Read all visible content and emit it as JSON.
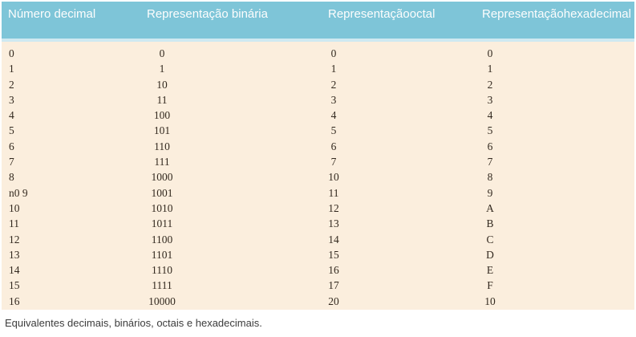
{
  "table": {
    "headers": [
      "Número decimal",
      "Representação binária",
      "Representaçãooctal",
      "Representaçãohexadecimal"
    ],
    "rows": [
      {
        "decimal": "0",
        "binary": "0",
        "octal": "0",
        "hexadecimal": "0"
      },
      {
        "decimal": "1",
        "binary": "1",
        "octal": "1",
        "hexadecimal": "1"
      },
      {
        "decimal": "2",
        "binary": "10",
        "octal": "2",
        "hexadecimal": "2"
      },
      {
        "decimal": "3",
        "binary": "11",
        "octal": "3",
        "hexadecimal": "3"
      },
      {
        "decimal": "4",
        "binary": "100",
        "octal": "4",
        "hexadecimal": "4"
      },
      {
        "decimal": "5",
        "binary": "101",
        "octal": "5",
        "hexadecimal": "5"
      },
      {
        "decimal": "6",
        "binary": "110",
        "octal": "6",
        "hexadecimal": "6"
      },
      {
        "decimal": "7",
        "binary": "111",
        "octal": "7",
        "hexadecimal": "7"
      },
      {
        "decimal": "8",
        "binary": "1000",
        "octal": "10",
        "hexadecimal": "8"
      },
      {
        "decimal": "n0 9",
        "binary": "1001",
        "octal": "11",
        "hexadecimal": "9"
      },
      {
        "decimal": "10",
        "binary": "1010",
        "octal": "12",
        "hexadecimal": "A"
      },
      {
        "decimal": "11",
        "binary": "1011",
        "octal": "13",
        "hexadecimal": "B"
      },
      {
        "decimal": "12",
        "binary": "1100",
        "octal": "14",
        "hexadecimal": "C"
      },
      {
        "decimal": "13",
        "binary": "1101",
        "octal": "15",
        "hexadecimal": "D"
      },
      {
        "decimal": "14",
        "binary": "1110",
        "octal": "16",
        "hexadecimal": "E"
      },
      {
        "decimal": "15",
        "binary": "1111",
        "octal": "17",
        "hexadecimal": "F"
      },
      {
        "decimal": "16",
        "binary": "10000",
        "octal": "20",
        "hexadecimal": "10"
      }
    ]
  },
  "caption": "Equivalentes decimais, binários, octais e hexadecimais.",
  "colors": {
    "header_bg": "#7ec5d8",
    "header_text": "#fdfdfd",
    "separator": "#cfe9f1",
    "body_bg": "#fbeedd",
    "body_text": "#33291f",
    "caption_text": "#3c3c3c"
  }
}
